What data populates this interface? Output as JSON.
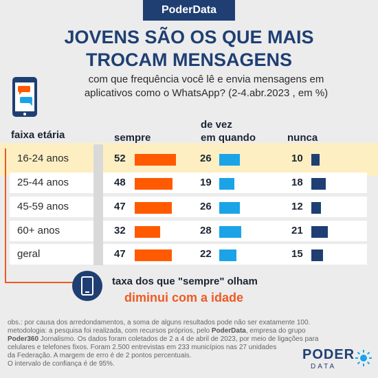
{
  "brand": "PoderData",
  "title_lines": [
    "JOVENS SÃO OS QUE MAIS",
    "TROCAM MENSAGENS"
  ],
  "subtitle_lines": [
    "com que frequência você lê e envia mensagens em",
    "aplicativos como o WhatsApp? (2-4.abr.2023 , em %)"
  ],
  "colors": {
    "sempre": "#ff5a00",
    "de_vez": "#1ba3e8",
    "nunca": "#1f3f73",
    "accent": "#ee5a24",
    "highlight": "#fdefc2"
  },
  "chart_data": {
    "type": "table",
    "column_headers": {
      "group": "faixa etária",
      "sempre": "sempre",
      "de_vez": [
        "de vez",
        "em quando"
      ],
      "nunca": "nunca"
    },
    "categories": [
      "16-24 anos",
      "25-44 anos",
      "45-59 anos",
      "60+ anos",
      "geral"
    ],
    "series": [
      {
        "name": "sempre",
        "values": [
          52,
          48,
          47,
          32,
          47
        ]
      },
      {
        "name": "de vez em quando",
        "values": [
          26,
          19,
          26,
          28,
          22
        ]
      },
      {
        "name": "nunca",
        "values": [
          10,
          18,
          12,
          21,
          15
        ]
      }
    ],
    "highlighted_category": "16-24 anos"
  },
  "callout": {
    "line1": "taxa dos que \"sempre\" olham",
    "line2": "diminui com a idade"
  },
  "notes": {
    "line1": "obs.: por causa dos arredondamentos, a soma de alguns resultados pode não ser exatamente 100.",
    "line2_a": "metodologia: a pesquisa foi realizada, com recursos próprios, pelo ",
    "line2_b": "PoderData",
    "line2_c": ", empresa do grupo",
    "line3_a": "Poder360",
    "line3_b": " Jornalismo. Os dados foram coletados de 2 a 4 de abril de 2023, por meio de ligações para",
    "line4": "celulares e telefones fixos. Foram 2.500 entrevistas em 233 municípios nas 27 unidades",
    "line5": "da Federação. A margem de erro é de 2 pontos percentuais.",
    "line6": "O intervalo de confiança é de 95%."
  },
  "logo": {
    "top": "PODER",
    "bottom": "DATA"
  }
}
